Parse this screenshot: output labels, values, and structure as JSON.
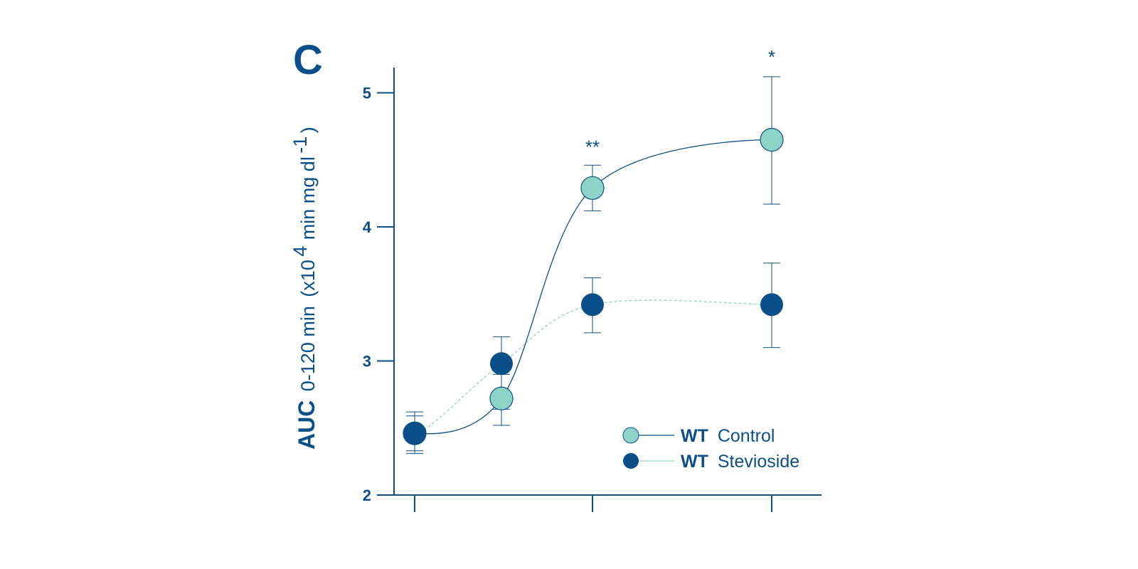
{
  "panel_label": "C",
  "colors": {
    "axis": "#0b4f8a",
    "control": "#8ed3c8",
    "stevioside": "#0b4f8a"
  },
  "chart_data": {
    "type": "line",
    "ylabel_main": "AUC",
    "ylabel_sub": "0-120 min",
    "ylabel_units_pre": "(x10",
    "ylabel_units_exp": "4",
    "ylabel_units_mid": "min mg dl",
    "ylabel_units_exp2": "-1",
    "ylabel_units_post": ")",
    "ylim": [
      2,
      5.2
    ],
    "y_ticks": [
      "2",
      "3",
      "4",
      "5"
    ],
    "x_positions": [
      0,
      1,
      2,
      3,
      4
    ],
    "x_ticks_at": [
      0,
      2,
      4
    ],
    "series": [
      {
        "name_bold": "WT",
        "name": "Control",
        "x": [
          0,
          1,
          2,
          4
        ],
        "values": [
          2.46,
          2.72,
          4.29,
          4.65
        ],
        "err_low": [
          2.31,
          2.52,
          4.12,
          4.17
        ],
        "err_high": [
          2.62,
          2.9,
          4.46,
          5.12
        ]
      },
      {
        "name_bold": "WT",
        "name": "Stevioside",
        "x": [
          0,
          1,
          2,
          4
        ],
        "values": [
          2.46,
          2.98,
          3.42,
          3.42
        ],
        "err_low": [
          2.33,
          2.64,
          3.21,
          3.1
        ],
        "err_high": [
          2.59,
          3.18,
          3.62,
          3.73
        ]
      }
    ],
    "annotations": [
      {
        "text": "**",
        "x": 2,
        "y": 4.55
      },
      {
        "text": "*",
        "x": 4,
        "y": 5.22
      }
    ]
  }
}
